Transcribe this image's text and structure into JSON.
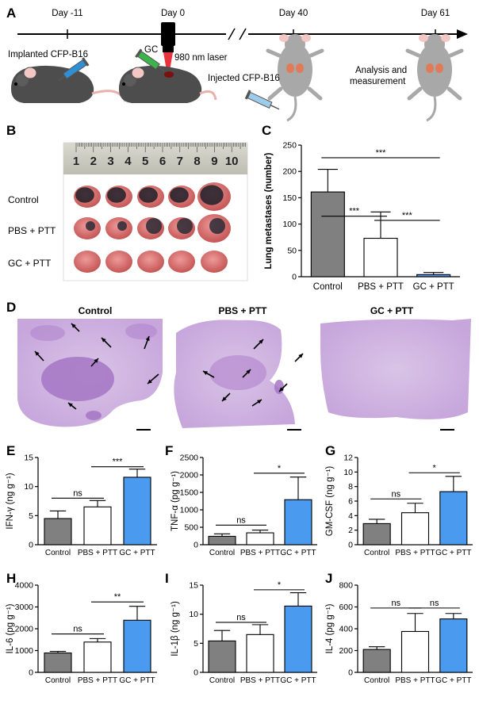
{
  "panel_labels": [
    "A",
    "B",
    "C",
    "D",
    "E",
    "F",
    "G",
    "H",
    "I",
    "J"
  ],
  "timeline": {
    "days": [
      "Day -11",
      "Day 0",
      "Day 40",
      "Day 61"
    ],
    "captions": {
      "implant": "Implanted CFP-B16",
      "gc": "GC",
      "laser": "980 nm laser",
      "inject": "Injected CFP-B16",
      "analysis": "Analysis and\nmeasurement"
    }
  },
  "panel_b": {
    "ruler_numbers": [
      "1",
      "2",
      "3",
      "4",
      "5",
      "6",
      "7",
      "8",
      "9",
      "10"
    ],
    "rows": [
      "Control",
      "PBS + PTT",
      "GC + PTT"
    ]
  },
  "panel_d": {
    "titles": [
      "Control",
      "PBS + PTT",
      "GC + PTT"
    ]
  },
  "colors": {
    "control": "#808080",
    "pbs": "#ffffff",
    "gc": "#4a9bf0",
    "laser": "#e8323c",
    "syringe": "#2f8fd6"
  },
  "chart_data": [
    {
      "id": "C",
      "type": "bar",
      "categories": [
        "Control",
        "PBS + PTT",
        "GC + PTT"
      ],
      "values": [
        161,
        73,
        4
      ],
      "errors": [
        43,
        50,
        4
      ],
      "ylabel": "Lung metastases (number)",
      "ylim": [
        0,
        250
      ],
      "yticks": [
        0,
        50,
        100,
        150,
        200,
        250
      ],
      "tick_labels": [
        "0",
        "50",
        "100",
        "150",
        "200",
        "250"
      ],
      "comparisons": [
        {
          "from": 0,
          "to": 1,
          "label": "***",
          "at": 115
        },
        {
          "from": 1,
          "to": 2,
          "label": "***",
          "at": 107
        },
        {
          "from": 0,
          "to": 2,
          "label": "***",
          "at": 226
        }
      ]
    },
    {
      "id": "E",
      "type": "bar",
      "categories": [
        "Control",
        "PBS + PTT",
        "GC + PTT"
      ],
      "values": [
        4.5,
        6.5,
        11.6
      ],
      "errors": [
        1.3,
        1.1,
        1.4
      ],
      "ylabel": "IFN-γ (ng g⁻¹)",
      "ylim": [
        0,
        15
      ],
      "yticks": [
        0,
        5,
        10,
        15
      ],
      "tick_labels": [
        "0",
        "5",
        "10",
        "15"
      ],
      "comparisons": [
        {
          "from": 0,
          "to": 1,
          "label": "ns",
          "at": 8.0
        },
        {
          "from": 1,
          "to": 2,
          "label": "***",
          "at": 13.4
        }
      ]
    },
    {
      "id": "F",
      "type": "bar",
      "categories": [
        "Control",
        "PBS + PTT",
        "GC + PTT"
      ],
      "values": [
        240,
        340,
        1290
      ],
      "errors": [
        70,
        80,
        650
      ],
      "ylabel": "TNF-α (pg g⁻¹)",
      "ylim": [
        0,
        2500
      ],
      "yticks": [
        0,
        500,
        1000,
        1500,
        2000,
        2500
      ],
      "tick_labels": [
        "0",
        "500",
        "1000",
        "1500",
        "2000",
        "2500"
      ],
      "comparisons": [
        {
          "from": 0,
          "to": 1,
          "label": "ns",
          "at": 560
        },
        {
          "from": 1,
          "to": 2,
          "label": "*",
          "at": 2050
        }
      ]
    },
    {
      "id": "G",
      "type": "bar",
      "categories": [
        "Control",
        "PBS + PTT",
        "GC + PTT"
      ],
      "values": [
        2.9,
        4.4,
        7.3
      ],
      "errors": [
        0.6,
        1.3,
        2.1
      ],
      "ylabel": "GM-CSF (ng g⁻¹)",
      "ylim": [
        0,
        12
      ],
      "yticks": [
        0,
        2,
        4,
        6,
        8,
        10,
        12
      ],
      "tick_labels": [
        "0",
        "2",
        "4",
        "6",
        "8",
        "10",
        "12"
      ],
      "comparisons": [
        {
          "from": 0,
          "to": 1,
          "label": "ns",
          "at": 6.3
        },
        {
          "from": 1,
          "to": 2,
          "label": "*",
          "at": 9.9
        }
      ]
    },
    {
      "id": "H",
      "type": "bar",
      "categories": [
        "Control",
        "PBS + PTT",
        "GC + PTT"
      ],
      "values": [
        890,
        1390,
        2390
      ],
      "errors": [
        70,
        160,
        640
      ],
      "ylabel": "IL-6 (pg g⁻¹)",
      "ylim": [
        0,
        4000
      ],
      "yticks": [
        0,
        1000,
        2000,
        3000,
        4000
      ],
      "tick_labels": [
        "0",
        "1000",
        "2000",
        "3000",
        "4000"
      ],
      "comparisons": [
        {
          "from": 0,
          "to": 1,
          "label": "ns",
          "at": 1760
        },
        {
          "from": 1,
          "to": 2,
          "label": "**",
          "at": 3230
        }
      ]
    },
    {
      "id": "I",
      "type": "bar",
      "categories": [
        "Control",
        "PBS + PTT",
        "GC + PTT"
      ],
      "values": [
        5.4,
        6.5,
        11.4
      ],
      "errors": [
        1.8,
        1.7,
        2.3
      ],
      "ylabel": "IL-1β (ng g⁻¹)",
      "ylim": [
        0,
        15
      ],
      "yticks": [
        0,
        5,
        10,
        15
      ],
      "tick_labels": [
        "0",
        "5",
        "10",
        "15"
      ],
      "comparisons": [
        {
          "from": 0,
          "to": 1,
          "label": "ns",
          "at": 8.6
        },
        {
          "from": 1,
          "to": 2,
          "label": "*",
          "at": 14.2
        }
      ]
    },
    {
      "id": "J",
      "type": "bar",
      "categories": [
        "Control",
        "PBS + PTT",
        "GC + PTT"
      ],
      "values": [
        210,
        375,
        490
      ],
      "errors": [
        25,
        165,
        50
      ],
      "ylabel": "IL-4 (pg g⁻¹)",
      "ylim": [
        0,
        800
      ],
      "yticks": [
        0,
        200,
        400,
        600,
        800
      ],
      "tick_labels": [
        "0",
        "200",
        "400",
        "600",
        "800"
      ],
      "comparisons": [
        {
          "from": 0,
          "to": 1,
          "label": "ns",
          "at": 590
        },
        {
          "from": 1,
          "to": 2,
          "label": "ns",
          "at": 590
        }
      ]
    }
  ]
}
